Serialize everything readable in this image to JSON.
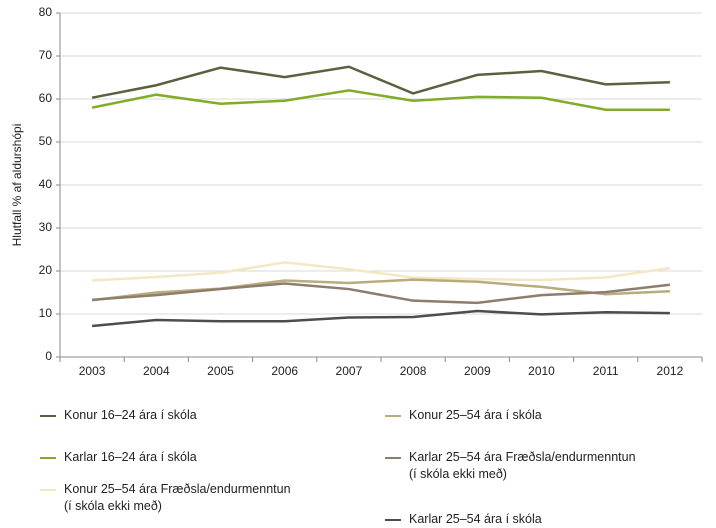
{
  "chart_data": {
    "type": "line",
    "y_label": "Hlutfall % af aldurshópi",
    "categories": [
      "2003",
      "2004",
      "2005",
      "2006",
      "2007",
      "2008",
      "2009",
      "2010",
      "2011",
      "2012"
    ],
    "ylim": [
      0,
      80
    ],
    "yticks": [
      0,
      10,
      20,
      30,
      40,
      50,
      60,
      70,
      80
    ],
    "grid": true,
    "series": [
      {
        "name": "Konur 16–24 ára í skóla",
        "color": "#5b6140",
        "values": [
          60.3,
          63.2,
          67.3,
          65.1,
          67.5,
          61.3,
          65.6,
          66.5,
          63.4,
          63.9
        ]
      },
      {
        "name": "Karlar 16–24 ára í skóla",
        "color": "#7fad2a",
        "values": [
          58.0,
          61.0,
          58.9,
          59.6,
          62.0,
          59.6,
          60.5,
          60.3,
          57.5,
          57.5
        ]
      },
      {
        "name": "Konur 25–54 ára Fræðsla/endurmenntun\n(í skóla ekki með)",
        "color": "#f2e8c4",
        "values": [
          17.8,
          18.6,
          19.6,
          22.0,
          20.4,
          18.5,
          18.1,
          17.9,
          18.5,
          20.7
        ]
      },
      {
        "name": "Konur 25–54 ára í skóla",
        "color": "#b8ab7c",
        "values": [
          13.2,
          15.0,
          15.9,
          17.8,
          17.2,
          18.0,
          17.5,
          16.3,
          14.6,
          15.3
        ]
      },
      {
        "name": "Karlar 25–54 ára Fræðsla/endurmenntun\n(í skóla ekki með)",
        "color": "#8c7d6c",
        "values": [
          13.3,
          14.4,
          15.8,
          17.1,
          15.8,
          13.1,
          12.6,
          14.4,
          15.1,
          16.8
        ]
      },
      {
        "name": "Karlar 25–54 ára í skóla",
        "color": "#4d4d4d",
        "values": [
          7.2,
          8.6,
          8.3,
          8.3,
          9.2,
          9.3,
          10.7,
          9.9,
          10.4,
          10.2
        ]
      }
    ]
  }
}
